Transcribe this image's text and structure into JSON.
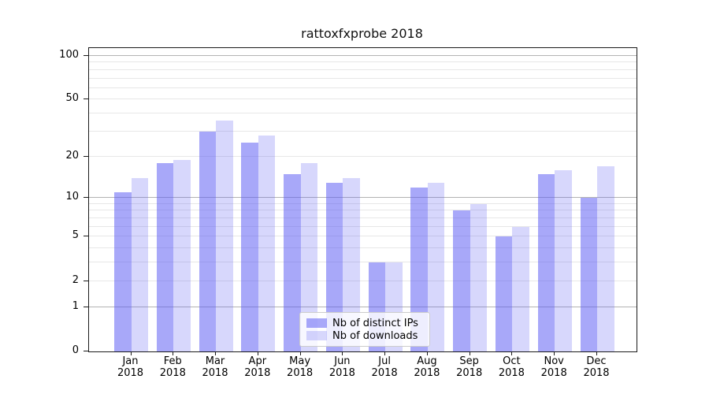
{
  "chart_data": {
    "type": "bar",
    "title": "rattoxfxprobe 2018",
    "categories": [
      "Jan",
      "Feb",
      "Mar",
      "Apr",
      "May",
      "Jun",
      "Jul",
      "Aug",
      "Sep",
      "Oct",
      "Nov",
      "Dec"
    ],
    "category_year": "2018",
    "series": [
      {
        "name": "Nb of distinct IPs",
        "color": "#5858f4",
        "alpha": 0.52,
        "values": [
          11,
          18,
          30,
          25,
          15,
          13,
          3,
          12,
          8,
          5,
          15,
          10
        ]
      },
      {
        "name": "Nb of downloads",
        "color": "#5858f4",
        "alpha": 0.24,
        "values": [
          14,
          19,
          36,
          28,
          18,
          14,
          3,
          13,
          9,
          6,
          16,
          17
        ]
      }
    ],
    "yscale": "log1p",
    "yticks": [
      0,
      1,
      2,
      5,
      10,
      20,
      50,
      100
    ],
    "ylim": [
      0,
      113
    ],
    "xlabel": "",
    "ylabel": "",
    "grid": true,
    "legend_position": "lower center",
    "colors": {
      "major_gridline": "#b3b3b3",
      "minor_gridline": "#e7e7e7",
      "axis_spine": "#1a1a1a",
      "background": "#ffffff"
    }
  }
}
